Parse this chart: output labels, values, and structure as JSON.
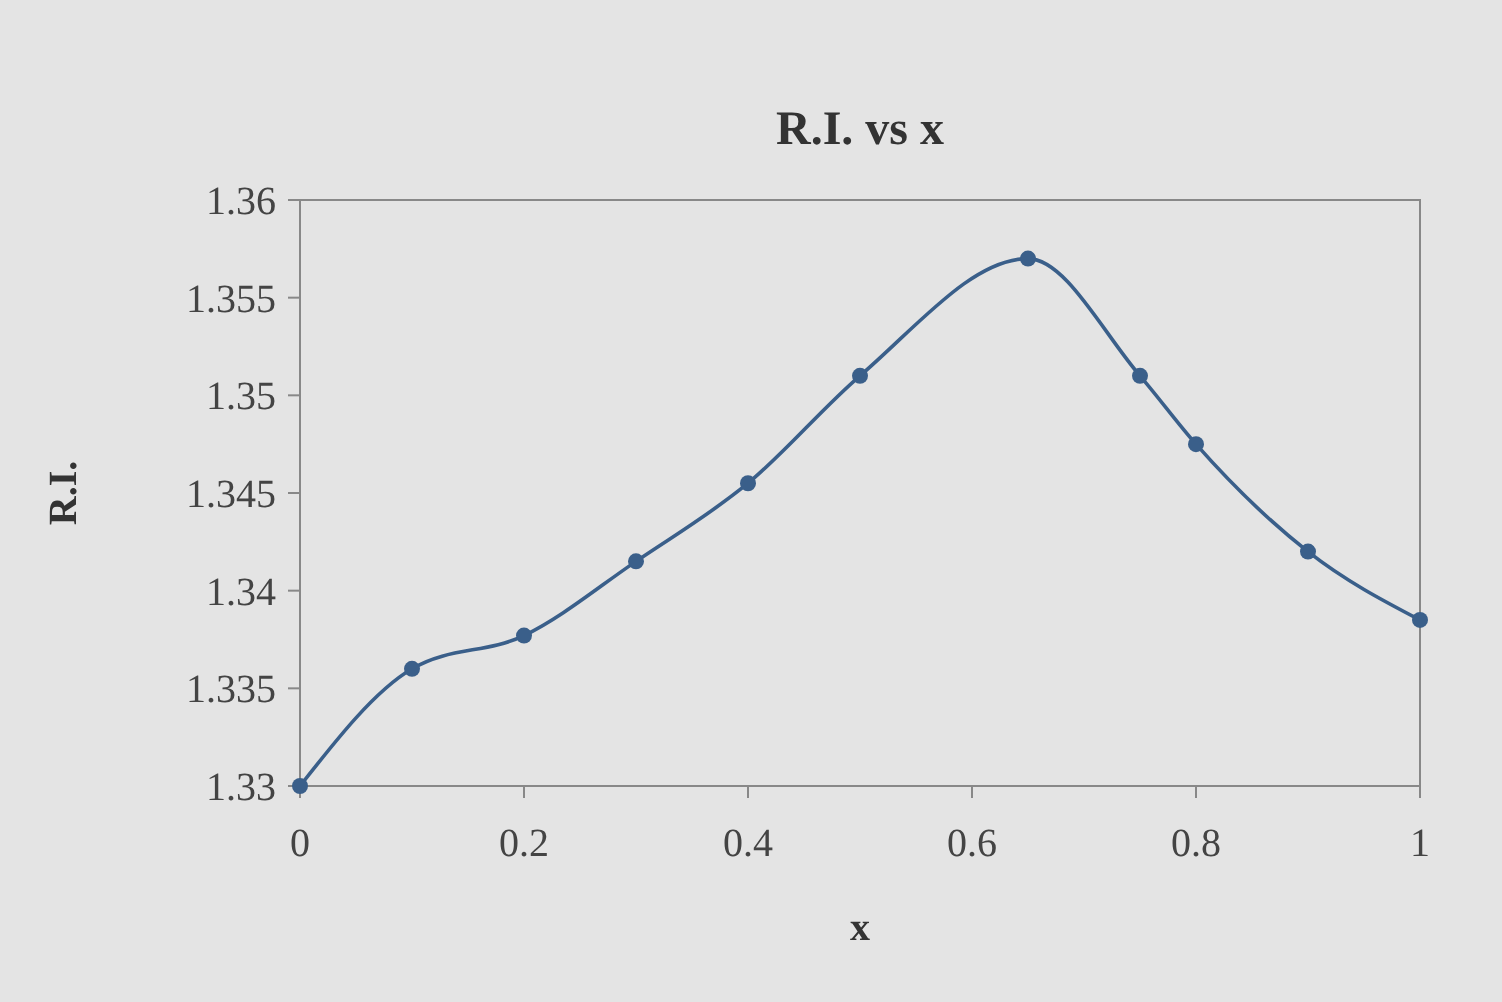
{
  "chart_data": {
    "type": "line",
    "title": "R.I. vs x",
    "xlabel": "x",
    "ylabel": "R.I.",
    "x": [
      0,
      0.1,
      0.2,
      0.3,
      0.4,
      0.5,
      0.65,
      0.75,
      0.8,
      0.9,
      1
    ],
    "series": [
      {
        "color": "#3a5f8a",
        "values": [
          1.33,
          1.336,
          1.3377,
          1.3415,
          1.3455,
          1.351,
          1.357,
          1.351,
          1.3475,
          1.342,
          1.3385
        ]
      }
    ],
    "xlim": [
      0,
      1
    ],
    "xticks": [
      0,
      0.2,
      0.4,
      0.6,
      0.8,
      1
    ],
    "ylim": [
      1.33,
      1.36
    ],
    "yticks": [
      1.33,
      1.335,
      1.34,
      1.345,
      1.35,
      1.355,
      1.36
    ],
    "marker": "circle",
    "line_style": "solid"
  }
}
